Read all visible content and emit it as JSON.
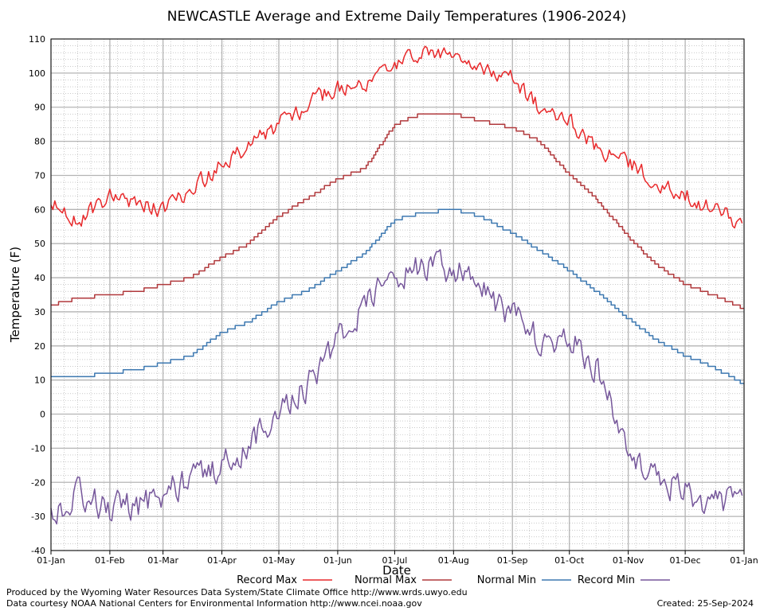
{
  "footer": {
    "produced_by": "Produced by the Wyoming Water Resources Data System/State Climate Office http://www.wrds.uwyo.edu",
    "courtesy": "Data courtesy NOAA National Centers for Environmental Information http://www.ncei.noaa.gov",
    "created": "Created:  25-Sep-2024"
  },
  "chart_data": {
    "type": "line",
    "title": "NEWCASTLE Average and Extreme Daily Temperatures (1906-2024)",
    "xlabel": "Date",
    "ylabel": "Temperature (F)",
    "ylim": [
      -40,
      110
    ],
    "yticks": [
      -40,
      -30,
      -20,
      -10,
      0,
      10,
      20,
      30,
      40,
      50,
      60,
      70,
      80,
      90,
      100,
      110
    ],
    "xlim_day_of_year": [
      1,
      366
    ],
    "xticks": [
      {
        "label": "01-Jan",
        "day": 1
      },
      {
        "label": "01-Feb",
        "day": 32
      },
      {
        "label": "01-Mar",
        "day": 60
      },
      {
        "label": "01-Apr",
        "day": 91
      },
      {
        "label": "01-May",
        "day": 121
      },
      {
        "label": "01-Jun",
        "day": 152
      },
      {
        "label": "01-Jul",
        "day": 182
      },
      {
        "label": "01-Aug",
        "day": 213
      },
      {
        "label": "01-Sep",
        "day": 244
      },
      {
        "label": "01-Oct",
        "day": 274
      },
      {
        "label": "01-Nov",
        "day": 305
      },
      {
        "label": "01-Dec",
        "day": 335
      },
      {
        "label": "01-Jan",
        "day": 366
      }
    ],
    "grid": true,
    "legend_position": "bottom",
    "x_key_dates": [
      "01-Jan",
      "15-Jan",
      "01-Feb",
      "15-Feb",
      "01-Mar",
      "15-Mar",
      "01-Apr",
      "15-Apr",
      "01-May",
      "15-May",
      "01-Jun",
      "15-Jun",
      "01-Jul",
      "15-Jul",
      "01-Aug",
      "15-Aug",
      "01-Sep",
      "15-Sep",
      "01-Oct",
      "15-Oct",
      "01-Nov",
      "15-Nov",
      "01-Dec",
      "15-Dec",
      "31-Dec"
    ],
    "series": [
      {
        "name": "Record Max",
        "color": "#e8292b",
        "kind": "record",
        "values": [
          62,
          56,
          64,
          61,
          60,
          66,
          73,
          78,
          85,
          90,
          96,
          97,
          101,
          106,
          105,
          100,
          98,
          90,
          86,
          78,
          74,
          68,
          65,
          60,
          56
        ]
      },
      {
        "name": "Normal Max",
        "color": "#b0393c",
        "kind": "normal",
        "values": [
          32,
          34,
          35,
          36,
          38,
          40,
          46,
          50,
          58,
          63,
          69,
          72,
          85,
          88,
          88,
          86,
          84,
          80,
          70,
          63,
          52,
          44,
          38,
          35,
          31
        ]
      },
      {
        "name": "Normal Min",
        "color": "#3d78b0",
        "kind": "normal",
        "values": [
          11,
          11,
          12,
          13,
          15,
          17,
          24,
          27,
          33,
          36,
          42,
          47,
          57,
          59,
          60,
          58,
          53,
          48,
          42,
          36,
          28,
          22,
          17,
          14,
          9
        ]
      },
      {
        "name": "Record Min",
        "color": "#76579b",
        "kind": "record",
        "values": [
          -28,
          -24,
          -28,
          -27,
          -24,
          -18,
          -15,
          -10,
          2,
          8,
          22,
          32,
          40,
          43,
          42,
          38,
          28,
          22,
          22,
          14,
          -10,
          -18,
          -22,
          -28,
          -24
        ]
      }
    ]
  }
}
